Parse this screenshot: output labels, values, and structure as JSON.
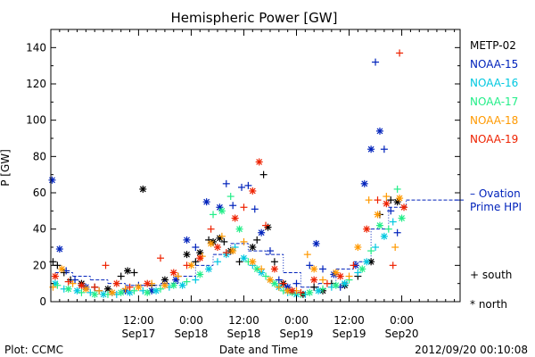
{
  "chart_data": {
    "type": "scatter",
    "title": "Hemispheric Power [GW]",
    "ylabel": "P [GW]",
    "xlabel": "Date and Time",
    "xlim_hours": [
      -20,
      73.3
    ],
    "ylim": [
      0,
      150
    ],
    "y_ticks": [
      0,
      20,
      40,
      60,
      80,
      100,
      120,
      140
    ],
    "x_ticks": [
      {
        "h": 0,
        "time": "12:00",
        "date": "Sep17"
      },
      {
        "h": 12,
        "time": "0:00",
        "date": "Sep18"
      },
      {
        "h": 24,
        "time": "12:00",
        "date": "Sep18"
      },
      {
        "h": 36,
        "time": "0:00",
        "date": "Sep19"
      },
      {
        "h": 48,
        "time": "12:00",
        "date": "Sep19"
      },
      {
        "h": 60,
        "time": "0:00",
        "date": "Sep20"
      }
    ],
    "legend": {
      "entries": [
        {
          "name": "METP-02",
          "color": "#000000"
        },
        {
          "name": "NOAA-15",
          "color": "#0022bb"
        },
        {
          "name": "NOAA-16",
          "color": "#00c8e0"
        },
        {
          "name": "NOAA-17",
          "color": "#22ee88"
        },
        {
          "name": "NOAA-18",
          "color": "#ff9900"
        },
        {
          "name": "NOAA-19",
          "color": "#ee2200"
        }
      ],
      "ovation_label_1": "– Ovation",
      "ovation_label_2": "Prime HPI",
      "south_label": "+ south",
      "north_label": "* north"
    },
    "footer": {
      "left": "Plot: CCMC",
      "right": "2012/09/20 00:10:08"
    },
    "ovation_series": [
      [
        -19,
        16
      ],
      [
        -15,
        14
      ],
      [
        -11,
        12
      ],
      [
        -7,
        10
      ],
      [
        -3,
        9
      ],
      [
        1,
        9
      ],
      [
        5,
        10
      ],
      [
        9,
        14
      ],
      [
        13,
        20
      ],
      [
        17,
        26
      ],
      [
        21,
        32
      ],
      [
        25,
        28
      ],
      [
        29,
        26
      ],
      [
        33,
        16
      ],
      [
        37,
        8
      ],
      [
        41,
        10
      ],
      [
        45,
        18
      ],
      [
        49,
        22
      ],
      [
        53,
        40
      ],
      [
        57,
        52
      ],
      [
        61,
        56
      ]
    ],
    "series": [
      {
        "name": "METP-02",
        "color": "#000000",
        "points": [
          [
            -19.5,
            22,
            "s"
          ],
          [
            -18.5,
            20,
            "s"
          ],
          [
            -17,
            16,
            "s"
          ],
          [
            -15.5,
            12,
            "s"
          ],
          [
            -13,
            10,
            "n"
          ],
          [
            -10,
            8,
            "s"
          ],
          [
            -7,
            7,
            "n"
          ],
          [
            -4,
            14,
            "s"
          ],
          [
            -2.5,
            17,
            "n"
          ],
          [
            -1,
            16,
            "s"
          ],
          [
            1,
            62,
            "n"
          ],
          [
            3,
            9,
            "s"
          ],
          [
            6,
            12,
            "n"
          ],
          [
            9,
            14,
            "s"
          ],
          [
            11,
            26,
            "n"
          ],
          [
            13,
            22,
            "s"
          ],
          [
            14,
            27,
            "n"
          ],
          [
            16,
            34,
            "s"
          ],
          [
            17,
            33,
            "n"
          ],
          [
            18.5,
            35,
            "n"
          ],
          [
            19.5,
            33,
            "s"
          ],
          [
            21,
            28,
            "n"
          ],
          [
            23,
            22,
            "s"
          ],
          [
            26,
            30,
            "n"
          ],
          [
            27,
            34,
            "s"
          ],
          [
            28.5,
            70,
            "s"
          ],
          [
            29.5,
            41,
            "n"
          ],
          [
            31,
            22,
            "s"
          ],
          [
            33,
            10,
            "n"
          ],
          [
            35,
            6,
            "s"
          ],
          [
            37.5,
            4,
            "n"
          ],
          [
            40,
            8,
            "s"
          ],
          [
            42,
            6,
            "n"
          ],
          [
            44,
            10,
            "s"
          ],
          [
            47,
            9,
            "n"
          ],
          [
            50,
            14,
            "s"
          ],
          [
            53,
            22,
            "n"
          ],
          [
            55,
            48,
            "s"
          ],
          [
            57.5,
            56,
            "s"
          ],
          [
            59,
            55,
            "n"
          ]
        ]
      },
      {
        "name": "NOAA-15",
        "color": "#0022bb",
        "points": [
          [
            -19.7,
            67,
            "n"
          ],
          [
            -18,
            29,
            "n"
          ],
          [
            -16.5,
            17,
            "s"
          ],
          [
            -14.5,
            12,
            "s"
          ],
          [
            -12,
            8,
            "n"
          ],
          [
            -9,
            6,
            "s"
          ],
          [
            -6,
            5,
            "s"
          ],
          [
            -3,
            6,
            "n"
          ],
          [
            0,
            9,
            "s"
          ],
          [
            3,
            6,
            "n"
          ],
          [
            6,
            10,
            "s"
          ],
          [
            8.5,
            12,
            "n"
          ],
          [
            11,
            34,
            "n"
          ],
          [
            13,
            30,
            "s"
          ],
          [
            15.5,
            55,
            "n"
          ],
          [
            18.5,
            52,
            "n"
          ],
          [
            20,
            65,
            "s"
          ],
          [
            21.5,
            53,
            "s"
          ],
          [
            23.5,
            63,
            "s"
          ],
          [
            25,
            64,
            "s"
          ],
          [
            26.5,
            51,
            "s"
          ],
          [
            28,
            38,
            "n"
          ],
          [
            30,
            28,
            "s"
          ],
          [
            32,
            12,
            "s"
          ],
          [
            34,
            8,
            "n"
          ],
          [
            36,
            10,
            "s"
          ],
          [
            39,
            20,
            "s"
          ],
          [
            40.5,
            32,
            "n"
          ],
          [
            42,
            18,
            "s"
          ],
          [
            44.5,
            15,
            "n"
          ],
          [
            46,
            8,
            "s"
          ],
          [
            49.5,
            20,
            "n"
          ],
          [
            51.5,
            65,
            "n"
          ],
          [
            53,
            84,
            "n"
          ],
          [
            54,
            132,
            "s"
          ],
          [
            55,
            94,
            "n"
          ],
          [
            56,
            84,
            "s"
          ],
          [
            57.5,
            50,
            "s"
          ],
          [
            59,
            38,
            "s"
          ]
        ]
      },
      {
        "name": "NOAA-16",
        "color": "#00c8e0",
        "points": [
          [
            -19,
            10,
            "n"
          ],
          [
            -17,
            7,
            "s"
          ],
          [
            -14,
            6,
            "n"
          ],
          [
            -11,
            5,
            "s"
          ],
          [
            -8,
            4,
            "n"
          ],
          [
            -5,
            4,
            "s"
          ],
          [
            -2,
            5,
            "n"
          ],
          [
            1,
            6,
            "s"
          ],
          [
            4,
            6,
            "n"
          ],
          [
            7,
            8,
            "s"
          ],
          [
            10,
            9,
            "n"
          ],
          [
            13,
            12,
            "s"
          ],
          [
            16,
            18,
            "n"
          ],
          [
            18,
            22,
            "s"
          ],
          [
            20,
            26,
            "n"
          ],
          [
            22,
            30,
            "s"
          ],
          [
            24,
            24,
            "n"
          ],
          [
            26,
            20,
            "s"
          ],
          [
            28,
            16,
            "n"
          ],
          [
            30,
            12,
            "s"
          ],
          [
            32,
            8,
            "n"
          ],
          [
            34,
            5,
            "s"
          ],
          [
            36,
            4,
            "n"
          ],
          [
            38,
            4,
            "s"
          ],
          [
            41,
            6,
            "n"
          ],
          [
            44,
            8,
            "s"
          ],
          [
            47,
            10,
            "n"
          ],
          [
            50,
            16,
            "s"
          ],
          [
            52,
            22,
            "n"
          ],
          [
            54,
            30,
            "s"
          ],
          [
            56,
            36,
            "n"
          ],
          [
            58,
            44,
            "s"
          ]
        ]
      },
      {
        "name": "NOAA-17",
        "color": "#22ee88",
        "points": [
          [
            -18.5,
            9,
            "s"
          ],
          [
            -16,
            7,
            "n"
          ],
          [
            -13,
            5,
            "s"
          ],
          [
            -10,
            4,
            "n"
          ],
          [
            -7,
            4,
            "s"
          ],
          [
            -4,
            5,
            "n"
          ],
          [
            -1,
            6,
            "s"
          ],
          [
            2,
            5,
            "n"
          ],
          [
            5,
            7,
            "s"
          ],
          [
            8,
            9,
            "n"
          ],
          [
            11,
            11,
            "s"
          ],
          [
            14,
            15,
            "n"
          ],
          [
            17,
            48,
            "s"
          ],
          [
            19,
            50,
            "n"
          ],
          [
            21,
            58,
            "s"
          ],
          [
            23,
            40,
            "n"
          ],
          [
            25,
            22,
            "s"
          ],
          [
            27,
            18,
            "n"
          ],
          [
            29,
            14,
            "s"
          ],
          [
            31,
            10,
            "n"
          ],
          [
            33,
            6,
            "s"
          ],
          [
            35,
            5,
            "n"
          ],
          [
            37,
            4,
            "s"
          ],
          [
            39,
            5,
            "n"
          ],
          [
            42,
            7,
            "s"
          ],
          [
            45,
            9,
            "n"
          ],
          [
            48,
            12,
            "s"
          ],
          [
            51,
            18,
            "n"
          ],
          [
            53,
            28,
            "s"
          ],
          [
            55,
            42,
            "n"
          ],
          [
            57,
            40,
            "s"
          ],
          [
            59,
            62,
            "s"
          ],
          [
            60,
            46,
            "n"
          ]
        ]
      },
      {
        "name": "NOAA-18",
        "color": "#ff9900",
        "points": [
          [
            -19.5,
            8,
            "s"
          ],
          [
            -17.5,
            18,
            "n"
          ],
          [
            -15,
            10,
            "s"
          ],
          [
            -12,
            7,
            "n"
          ],
          [
            -9,
            6,
            "s"
          ],
          [
            -6,
            5,
            "n"
          ],
          [
            -3,
            7,
            "s"
          ],
          [
            0,
            8,
            "n"
          ],
          [
            3,
            10,
            "s"
          ],
          [
            6,
            9,
            "n"
          ],
          [
            9,
            14,
            "s"
          ],
          [
            12,
            20,
            "n"
          ],
          [
            14.5,
            25,
            "s"
          ],
          [
            16.5,
            32,
            "n"
          ],
          [
            19,
            36,
            "s"
          ],
          [
            21.5,
            28,
            "n"
          ],
          [
            24,
            33,
            "s"
          ],
          [
            26,
            22,
            "n"
          ],
          [
            28,
            18,
            "s"
          ],
          [
            30,
            12,
            "n"
          ],
          [
            32,
            8,
            "s"
          ],
          [
            34,
            6,
            "n"
          ],
          [
            36,
            6,
            "s"
          ],
          [
            38.5,
            26,
            "s"
          ],
          [
            40,
            18,
            "n"
          ],
          [
            42,
            12,
            "s"
          ],
          [
            45,
            16,
            "n"
          ],
          [
            48,
            14,
            "s"
          ],
          [
            50,
            30,
            "n"
          ],
          [
            52.5,
            56,
            "s"
          ],
          [
            54.5,
            48,
            "n"
          ],
          [
            56.5,
            58,
            "s"
          ],
          [
            58.5,
            30,
            "s"
          ],
          [
            59.5,
            57,
            "n"
          ]
        ]
      },
      {
        "name": "NOAA-19",
        "color": "#ee2200",
        "points": [
          [
            -19,
            14,
            "n"
          ],
          [
            -16,
            11,
            "s"
          ],
          [
            -13,
            9,
            "n"
          ],
          [
            -10,
            8,
            "s"
          ],
          [
            -7.5,
            20,
            "s"
          ],
          [
            -5,
            10,
            "n"
          ],
          [
            -2,
            8,
            "s"
          ],
          [
            2,
            10,
            "n"
          ],
          [
            5,
            24,
            "s"
          ],
          [
            8,
            16,
            "n"
          ],
          [
            11,
            20,
            "s"
          ],
          [
            14,
            24,
            "n"
          ],
          [
            16.5,
            40,
            "s"
          ],
          [
            18,
            30,
            "n"
          ],
          [
            20,
            27,
            "s"
          ],
          [
            22,
            46,
            "n"
          ],
          [
            24,
            52,
            "s"
          ],
          [
            26,
            61,
            "n"
          ],
          [
            27.5,
            77,
            "n"
          ],
          [
            29,
            42,
            "s"
          ],
          [
            31,
            18,
            "n"
          ],
          [
            33,
            10,
            "s"
          ],
          [
            35,
            6,
            "n"
          ],
          [
            37,
            5,
            "s"
          ],
          [
            40,
            12,
            "n"
          ],
          [
            43,
            10,
            "s"
          ],
          [
            46,
            14,
            "n"
          ],
          [
            49,
            20,
            "s"
          ],
          [
            52,
            40,
            "n"
          ],
          [
            54.5,
            56,
            "s"
          ],
          [
            56.5,
            54,
            "n"
          ],
          [
            58,
            20,
            "s"
          ],
          [
            59.5,
            137,
            "s"
          ],
          [
            60.5,
            52,
            "n"
          ]
        ]
      }
    ]
  }
}
